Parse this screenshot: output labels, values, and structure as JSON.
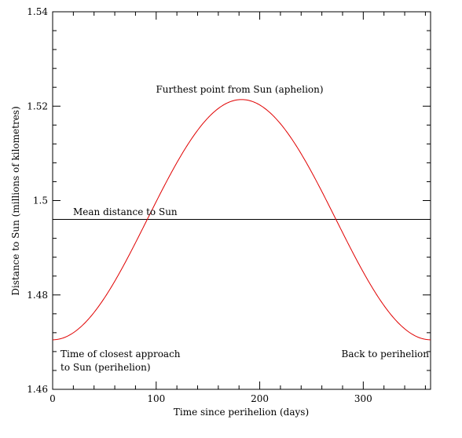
{
  "chart_data": {
    "type": "line",
    "title": "",
    "xlabel": "Time since perihelion (days)",
    "ylabel": "Distance to Sun (millions of kilometres)",
    "xlim": [
      0,
      365
    ],
    "ylim": [
      1.46,
      1.54
    ],
    "x_ticks": [
      0,
      100,
      200,
      300
    ],
    "x_tick_labels": [
      "0",
      "100",
      "200",
      "300"
    ],
    "y_ticks": [
      1.46,
      1.48,
      1.5,
      1.52,
      1.54
    ],
    "y_tick_labels": [
      "1.46",
      "1.48",
      "1.5",
      "1.52",
      "1.54"
    ],
    "grid": false,
    "series": [
      {
        "color": "#e00000",
        "x": [
          0,
          20,
          40,
          60,
          80,
          91,
          100,
          120,
          140,
          160,
          182.6,
          200,
          220,
          240,
          260,
          274,
          280,
          300,
          320,
          340,
          365
        ],
        "y": [
          1.4705,
          1.4722,
          1.4771,
          1.4848,
          1.4944,
          1.496,
          1.5051,
          1.5149,
          1.521,
          1.5232,
          1.5214,
          1.5187,
          1.5112,
          1.5015,
          1.4915,
          1.496,
          1.4822,
          1.4753,
          1.4712,
          1.4704,
          1.4705
        ]
      }
    ],
    "reference_lines": [
      {
        "y": 1.496,
        "color": "#000000"
      }
    ],
    "annotations": {
      "aphelion": "Furthest point from Sun (aphelion)",
      "mean": "Mean distance to Sun",
      "perihelion_line1": "Time of closest approach",
      "perihelion_line2": "to Sun (perihelion)",
      "back": "Back to perihelion"
    }
  }
}
